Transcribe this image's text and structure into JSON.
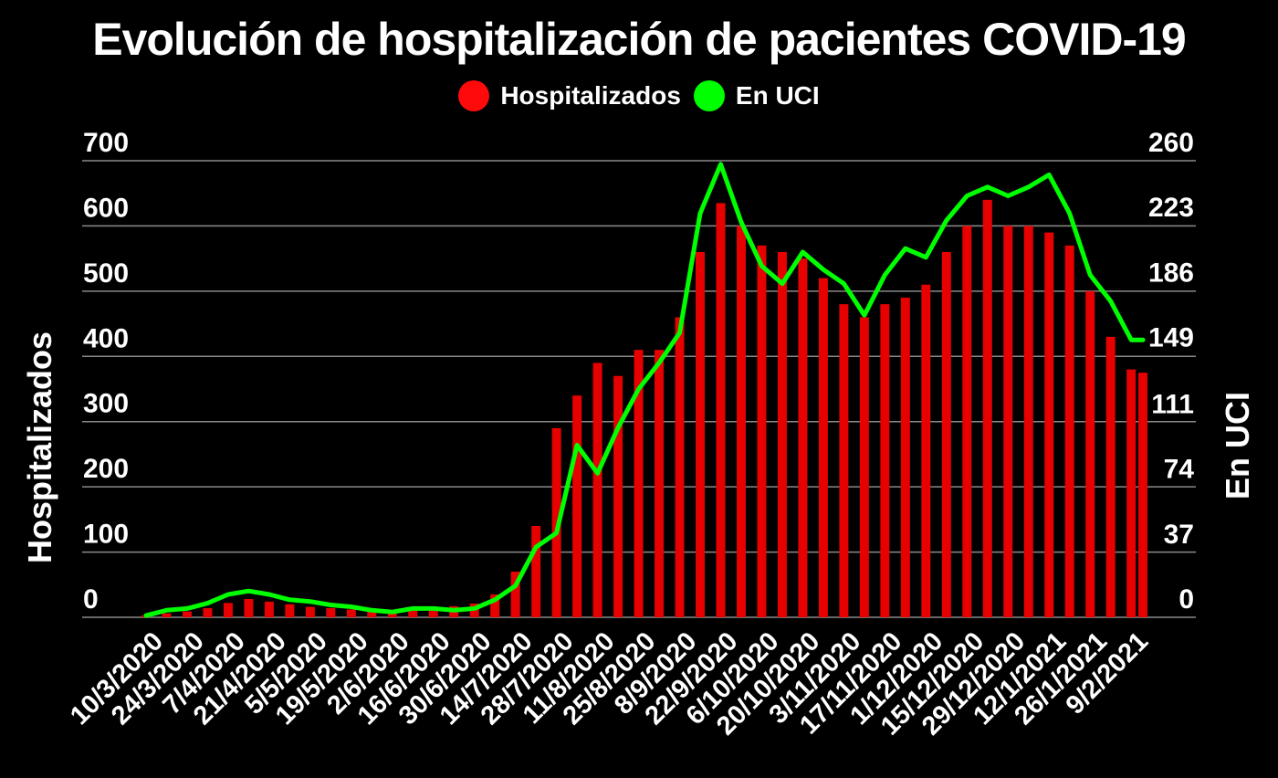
{
  "chart_data": {
    "type": "bar",
    "title": "Evolución de hospitalización de pacientes COVID-19",
    "legend_position": "top",
    "grid": true,
    "ylabel": "Hospitalizados",
    "y2label": "En UCI",
    "ylim": [
      0,
      700
    ],
    "y2lim": [
      0,
      260
    ],
    "yticks": [
      "0",
      "100",
      "200",
      "300",
      "400",
      "500",
      "600",
      "700"
    ],
    "y2ticks": [
      "0",
      "37",
      "74",
      "111",
      "149",
      "186",
      "223",
      "260"
    ],
    "xtick_labels": [
      "10/3/2020",
      "24/3/2020",
      "7/4/2020",
      "21/4/2020",
      "5/5/2020",
      "19/5/2020",
      "2/6/2020",
      "16/6/2020",
      "30/6/2020",
      "14/7/2020",
      "28/7/2020",
      "11/8/2020",
      "25/8/2020",
      "8/9/2020",
      "22/9/2020",
      "6/10/2020",
      "20/10/2020",
      "3/11/2020",
      "17/11/2020",
      "1/12/2020",
      "15/12/2020",
      "29/12/2020",
      "12/1/2021",
      "26/1/2021",
      "9/2/2021"
    ],
    "x_start": "10/3/2020",
    "x_end": "13/2/2021",
    "series": [
      {
        "name": "Hospitalizados",
        "type": "bar",
        "axis": "left",
        "color": "#e60000",
        "legend_color": "#ff0a0a",
        "points": [
          [
            "10/3/2020",
            3
          ],
          [
            "17/3/2020",
            6
          ],
          [
            "24/3/2020",
            9
          ],
          [
            "31/3/2020",
            14
          ],
          [
            "7/4/2020",
            22
          ],
          [
            "14/4/2020",
            28
          ],
          [
            "21/4/2020",
            24
          ],
          [
            "28/4/2020",
            20
          ],
          [
            "5/5/2020",
            16
          ],
          [
            "12/5/2020",
            14
          ],
          [
            "19/5/2020",
            12
          ],
          [
            "26/5/2020",
            11
          ],
          [
            "2/6/2020",
            10
          ],
          [
            "9/6/2020",
            11
          ],
          [
            "16/6/2020",
            14
          ],
          [
            "23/6/2020",
            17
          ],
          [
            "30/6/2020",
            21
          ],
          [
            "7/7/2020",
            35
          ],
          [
            "14/7/2020",
            70
          ],
          [
            "21/7/2020",
            140
          ],
          [
            "28/7/2020",
            290
          ],
          [
            "4/8/2020",
            340
          ],
          [
            "11/8/2020",
            390
          ],
          [
            "18/8/2020",
            370
          ],
          [
            "25/8/2020",
            410
          ],
          [
            "1/9/2020",
            410
          ],
          [
            "8/9/2020",
            460
          ],
          [
            "15/9/2020",
            560
          ],
          [
            "22/9/2020",
            635
          ],
          [
            "29/9/2020",
            600
          ],
          [
            "6/10/2020",
            570
          ],
          [
            "13/10/2020",
            560
          ],
          [
            "20/10/2020",
            550
          ],
          [
            "27/10/2020",
            520
          ],
          [
            "3/11/2020",
            480
          ],
          [
            "10/11/2020",
            460
          ],
          [
            "17/11/2020",
            480
          ],
          [
            "24/11/2020",
            490
          ],
          [
            "1/12/2020",
            510
          ],
          [
            "8/12/2020",
            560
          ],
          [
            "15/12/2020",
            600
          ],
          [
            "22/12/2020",
            640
          ],
          [
            "29/12/2020",
            600
          ],
          [
            "5/1/2021",
            600
          ],
          [
            "12/1/2021",
            590
          ],
          [
            "19/1/2021",
            570
          ],
          [
            "26/1/2021",
            500
          ],
          [
            "2/2/2021",
            430
          ],
          [
            "9/2/2021",
            380
          ],
          [
            "13/2/2021",
            375
          ]
        ]
      },
      {
        "name": "En UCI",
        "type": "line",
        "axis": "right",
        "color": "#00ff00",
        "legend_color": "#00ff00",
        "points": [
          [
            "10/3/2020",
            1
          ],
          [
            "17/3/2020",
            4
          ],
          [
            "24/3/2020",
            5
          ],
          [
            "31/3/2020",
            8
          ],
          [
            "7/4/2020",
            13
          ],
          [
            "14/4/2020",
            15
          ],
          [
            "21/4/2020",
            13
          ],
          [
            "28/4/2020",
            10
          ],
          [
            "5/5/2020",
            9
          ],
          [
            "12/5/2020",
            7
          ],
          [
            "19/5/2020",
            6
          ],
          [
            "26/5/2020",
            4
          ],
          [
            "2/6/2020",
            3
          ],
          [
            "9/6/2020",
            5
          ],
          [
            "16/6/2020",
            5
          ],
          [
            "23/6/2020",
            4
          ],
          [
            "30/6/2020",
            5
          ],
          [
            "7/7/2020",
            10
          ],
          [
            "14/7/2020",
            18
          ],
          [
            "21/7/2020",
            40
          ],
          [
            "28/7/2020",
            48
          ],
          [
            "4/8/2020",
            98
          ],
          [
            "11/8/2020",
            82
          ],
          [
            "18/8/2020",
            108
          ],
          [
            "25/8/2020",
            130
          ],
          [
            "1/9/2020",
            145
          ],
          [
            "8/9/2020",
            162
          ],
          [
            "15/9/2020",
            230
          ],
          [
            "22/9/2020",
            258
          ],
          [
            "29/9/2020",
            225
          ],
          [
            "6/10/2020",
            200
          ],
          [
            "13/10/2020",
            190
          ],
          [
            "20/10/2020",
            208
          ],
          [
            "27/10/2020",
            198
          ],
          [
            "3/11/2020",
            190
          ],
          [
            "10/11/2020",
            172
          ],
          [
            "17/11/2020",
            195
          ],
          [
            "24/11/2020",
            210
          ],
          [
            "1/12/2020",
            205
          ],
          [
            "8/12/2020",
            226
          ],
          [
            "15/12/2020",
            240
          ],
          [
            "22/12/2020",
            245
          ],
          [
            "29/12/2020",
            240
          ],
          [
            "5/1/2021",
            245
          ],
          [
            "12/1/2021",
            252
          ],
          [
            "19/1/2021",
            230
          ],
          [
            "26/1/2021",
            195
          ],
          [
            "2/2/2021",
            180
          ],
          [
            "9/2/2021",
            158
          ],
          [
            "13/2/2021",
            158
          ]
        ]
      }
    ]
  }
}
